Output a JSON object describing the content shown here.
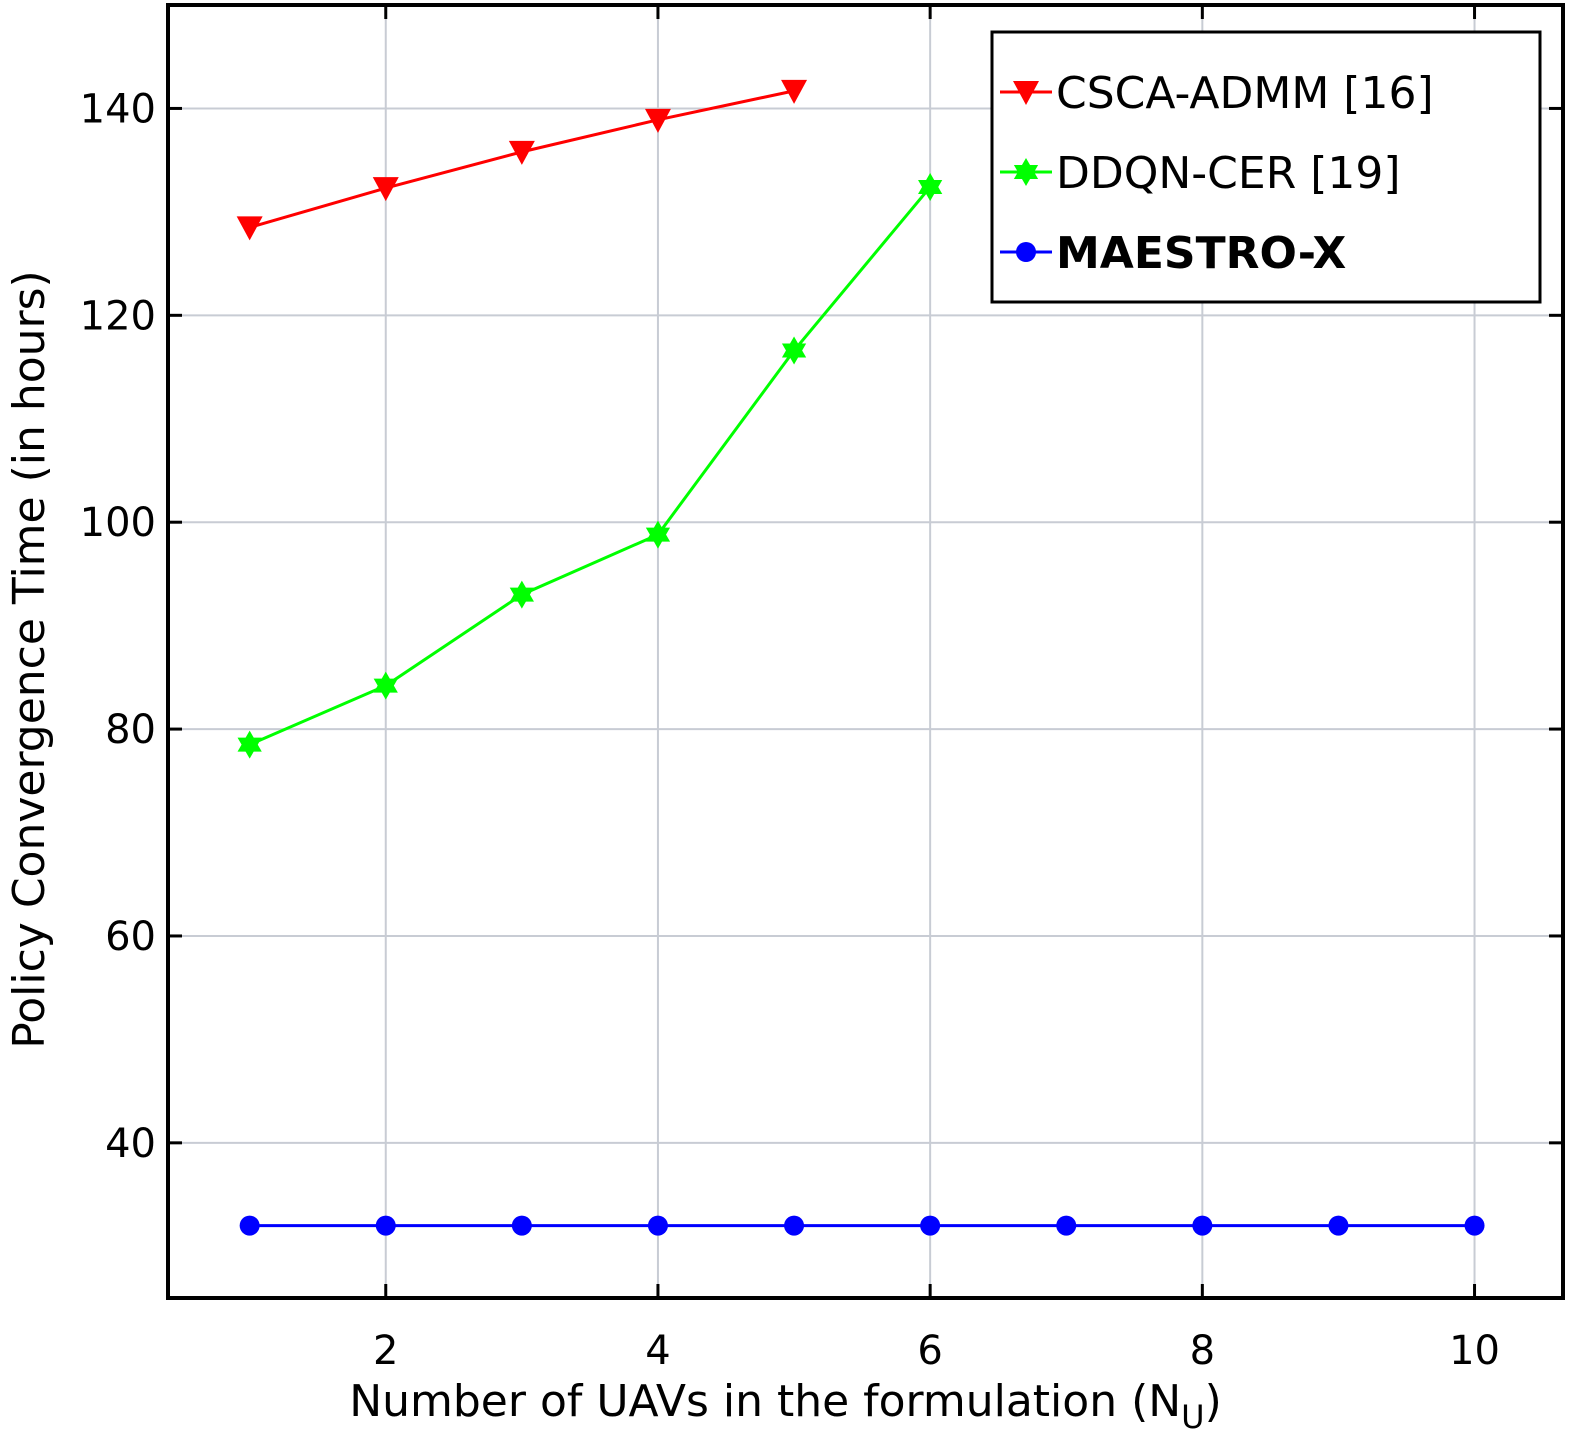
{
  "chart_data": {
    "type": "line",
    "xlabel": "Number of UAVs in the formulation (N",
    "xlabel_subscript": "U",
    "xlabel_close": ")",
    "ylabel": "Policy Convergence Time (in hours)",
    "xlim": [
      0.4,
      10.65
    ],
    "ylim": [
      25,
      150
    ],
    "xticks": [
      2,
      4,
      6,
      8,
      10
    ],
    "yticks": [
      40,
      60,
      80,
      100,
      120,
      140
    ],
    "grid": true,
    "legend_position": "top-right",
    "series": [
      {
        "name": "CSCA-ADMM [16]",
        "color": "#ff0000",
        "marker": "triangle-down",
        "bold": false,
        "x": [
          1,
          2,
          3,
          4,
          5
        ],
        "y": [
          128.5,
          132.3,
          135.8,
          138.9,
          141.7
        ]
      },
      {
        "name": "DDQN-CER [19]",
        "color": "#00ff00",
        "marker": "hexagram",
        "bold": false,
        "x": [
          1,
          2,
          3,
          4,
          5,
          6
        ],
        "y": [
          78.5,
          84.2,
          93.0,
          98.8,
          116.6,
          132.4
        ]
      },
      {
        "name": "MAESTRO-X",
        "color": "#0000ff",
        "marker": "circle",
        "bold": true,
        "x": [
          1,
          2,
          3,
          4,
          5,
          6,
          7,
          8,
          9,
          10
        ],
        "y": [
          32,
          32,
          32,
          32,
          32,
          32,
          32,
          32,
          32,
          32
        ]
      }
    ]
  }
}
